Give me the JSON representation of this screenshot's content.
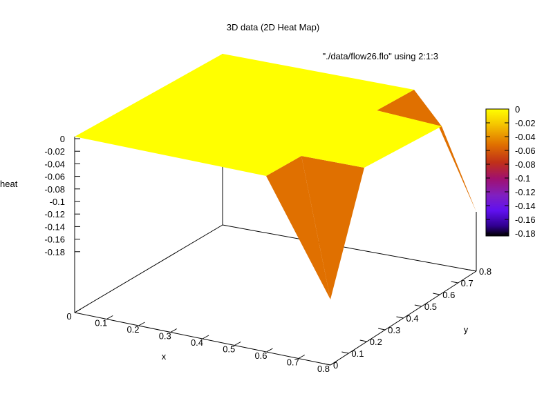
{
  "chart_data": {
    "type": "surface",
    "title": "3D data (2D Heat Map)",
    "legend": "\"./data/flow26.flo\" using 2:1:3",
    "xlabel": "x",
    "ylabel": "y",
    "zlabel": "heat",
    "xlim": [
      0,
      0.8
    ],
    "ylim": [
      0,
      0.8
    ],
    "zlim": [
      -0.18,
      0
    ],
    "x_ticks": [
      "0",
      "0.1",
      "0.2",
      "0.3",
      "0.4",
      "0.5",
      "0.6",
      "0.7",
      "0.8"
    ],
    "y_ticks": [
      "0",
      "0.1",
      "0.2",
      "0.3",
      "0.4",
      "0.5",
      "0.6",
      "0.7",
      "0.8"
    ],
    "z_ticks": [
      "0",
      "-0.02",
      "-0.04",
      "-0.06",
      "-0.08",
      "-0.1",
      "-0.12",
      "-0.14",
      "-0.16",
      "-0.18"
    ],
    "colorbar_ticks": [
      "0",
      "-0.02",
      "-0.04",
      "-0.06",
      "-0.08",
      "-0.1",
      "-0.12",
      "-0.14",
      "-0.16",
      "-0.18"
    ],
    "colorbar_range": [
      -0.18,
      0
    ],
    "grid": false,
    "grid_x": [
      0,
      0.8
    ],
    "grid_y": [
      0,
      0.8
    ],
    "z_grid": [
      [
        0,
        0
      ],
      [
        0,
        0
      ]
    ],
    "features": [
      {
        "x": 0.8,
        "y": 0,
        "z": -0.09
      },
      {
        "x": 0.8,
        "y": 0.8,
        "z": -0.05
      }
    ],
    "colors": {
      "high": "#ffff00",
      "mid": "#e07000",
      "low": "#000000"
    }
  }
}
